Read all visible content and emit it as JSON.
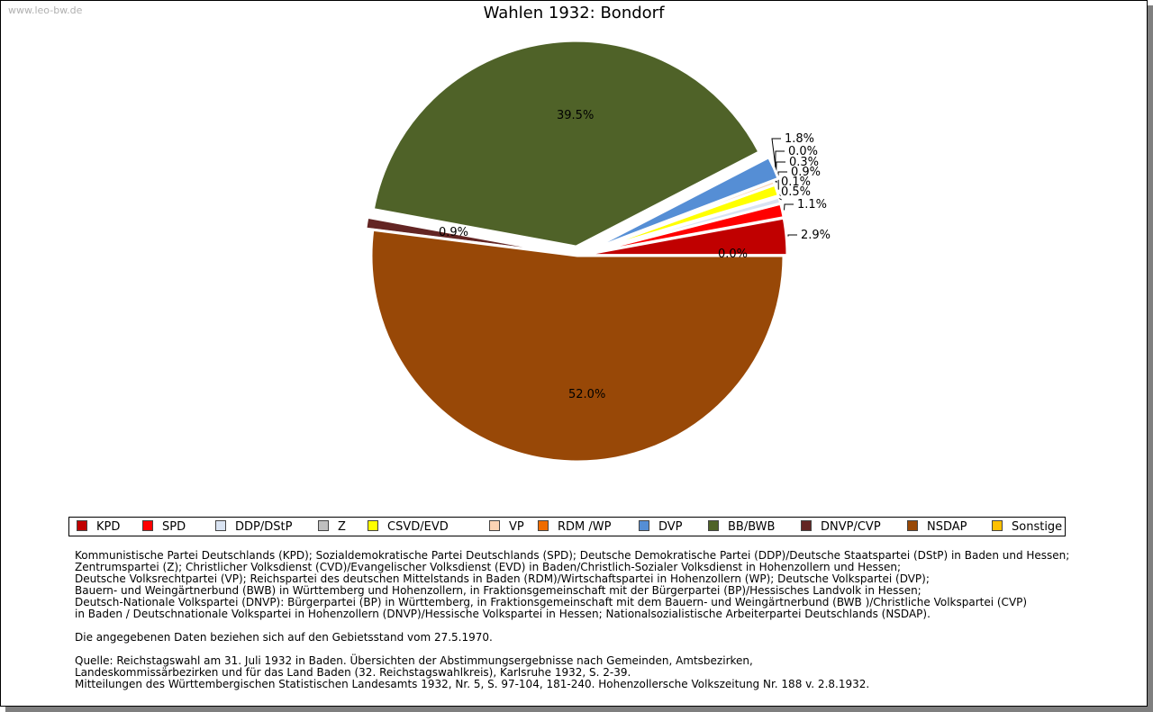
{
  "watermark": "www.leo-bw.de",
  "chart_data": {
    "type": "pie",
    "title": "Wahlen 1932: Bondorf",
    "categories": [
      "KPD",
      "SPD",
      "DDP/DStP",
      "Z",
      "CSVD/EVD",
      "VP",
      "RDM /WP",
      "DVP",
      "BB/BWB",
      "DNVP/CVP",
      "NSDAP",
      "Sonstige"
    ],
    "values": [
      2.9,
      1.1,
      0.5,
      0.1,
      0.9,
      0.3,
      0.0,
      1.8,
      39.5,
      0.9,
      52.0,
      0.0
    ],
    "labels": [
      "2.9%",
      "1.1%",
      "0.5%",
      "0.1%",
      "0.9%",
      "0.3%",
      "0.0%",
      "1.8%",
      "39.5%",
      "0.9%",
      "52.0%",
      "0.0%"
    ],
    "colors": [
      "#c00000",
      "#ff0000",
      "#d9e3f2",
      "#bfbfbf",
      "#ffff00",
      "#fbd3b4",
      "#ef6c00",
      "#558ed5",
      "#4f6228",
      "#632523",
      "#984807",
      "#ffc000"
    ],
    "legend_position": "bottom"
  },
  "notes": {
    "parties": [
      "Kommunistische Partei Deutschlands (KPD); Sozialdemokratische Partei Deutschlands (SPD); Deutsche Demokratische Partei (DDP)/Deutsche Staatspartei (DStP) in Baden und Hessen;",
      "Zentrumspartei (Z); Christlicher Volksdienst (CVD)/Evangelischer Volksdienst (EVD) in Baden/Christlich-Sozialer Volksdienst in Hohenzollern und Hessen;",
      "Deutsche Volksrechtpartei (VP); Reichspartei des deutschen Mittelstands in Baden (RDM)/Wirtschaftspartei in Hohenzollern (WP); Deutsche Volkspartei (DVP);",
      "Bauern- und Weingärtnerbund (BWB) in Württemberg und Hohenzollern, in Fraktionsgemeinschaft mit der Bürgerpartei (BP)/Hessisches Landvolk in Hessen;",
      "Deutsch-Nationale Volkspartei (DNVP): Bürgerpartei (BP) in Württemberg, in Fraktionsgemeinschaft mit dem Bauern- und Weingärtnerbund (BWB )/Christliche Volkspartei (CVP)",
      "in Baden / Deutschnationale Volkspartei in Hohenzollern (DNVP)/Hessische Volkspartei in Hessen; Nationalsozialistische Arbeiterpartei Deutschlands (NSDAP)."
    ],
    "territory": "Die angegebenen Daten beziehen sich auf den Gebietsstand vom 27.5.1970.",
    "source": [
      "Quelle: Reichstagswahl am 31. Juli 1932 in Baden. Übersichten der Abstimmungsergebnisse nach Gemeinden, Amtsbezirken,",
      "Landeskommissärbezirken und für das Land Baden (32. Reichstagswahlkreis), Karlsruhe 1932, S. 2-39.",
      "Mitteilungen des Württembergischen Statistischen Landesamts 1932, Nr. 5, S. 97-104, 181-240. Hohenzollersche Volkszeitung Nr. 188 v. 2.8.1932."
    ]
  }
}
